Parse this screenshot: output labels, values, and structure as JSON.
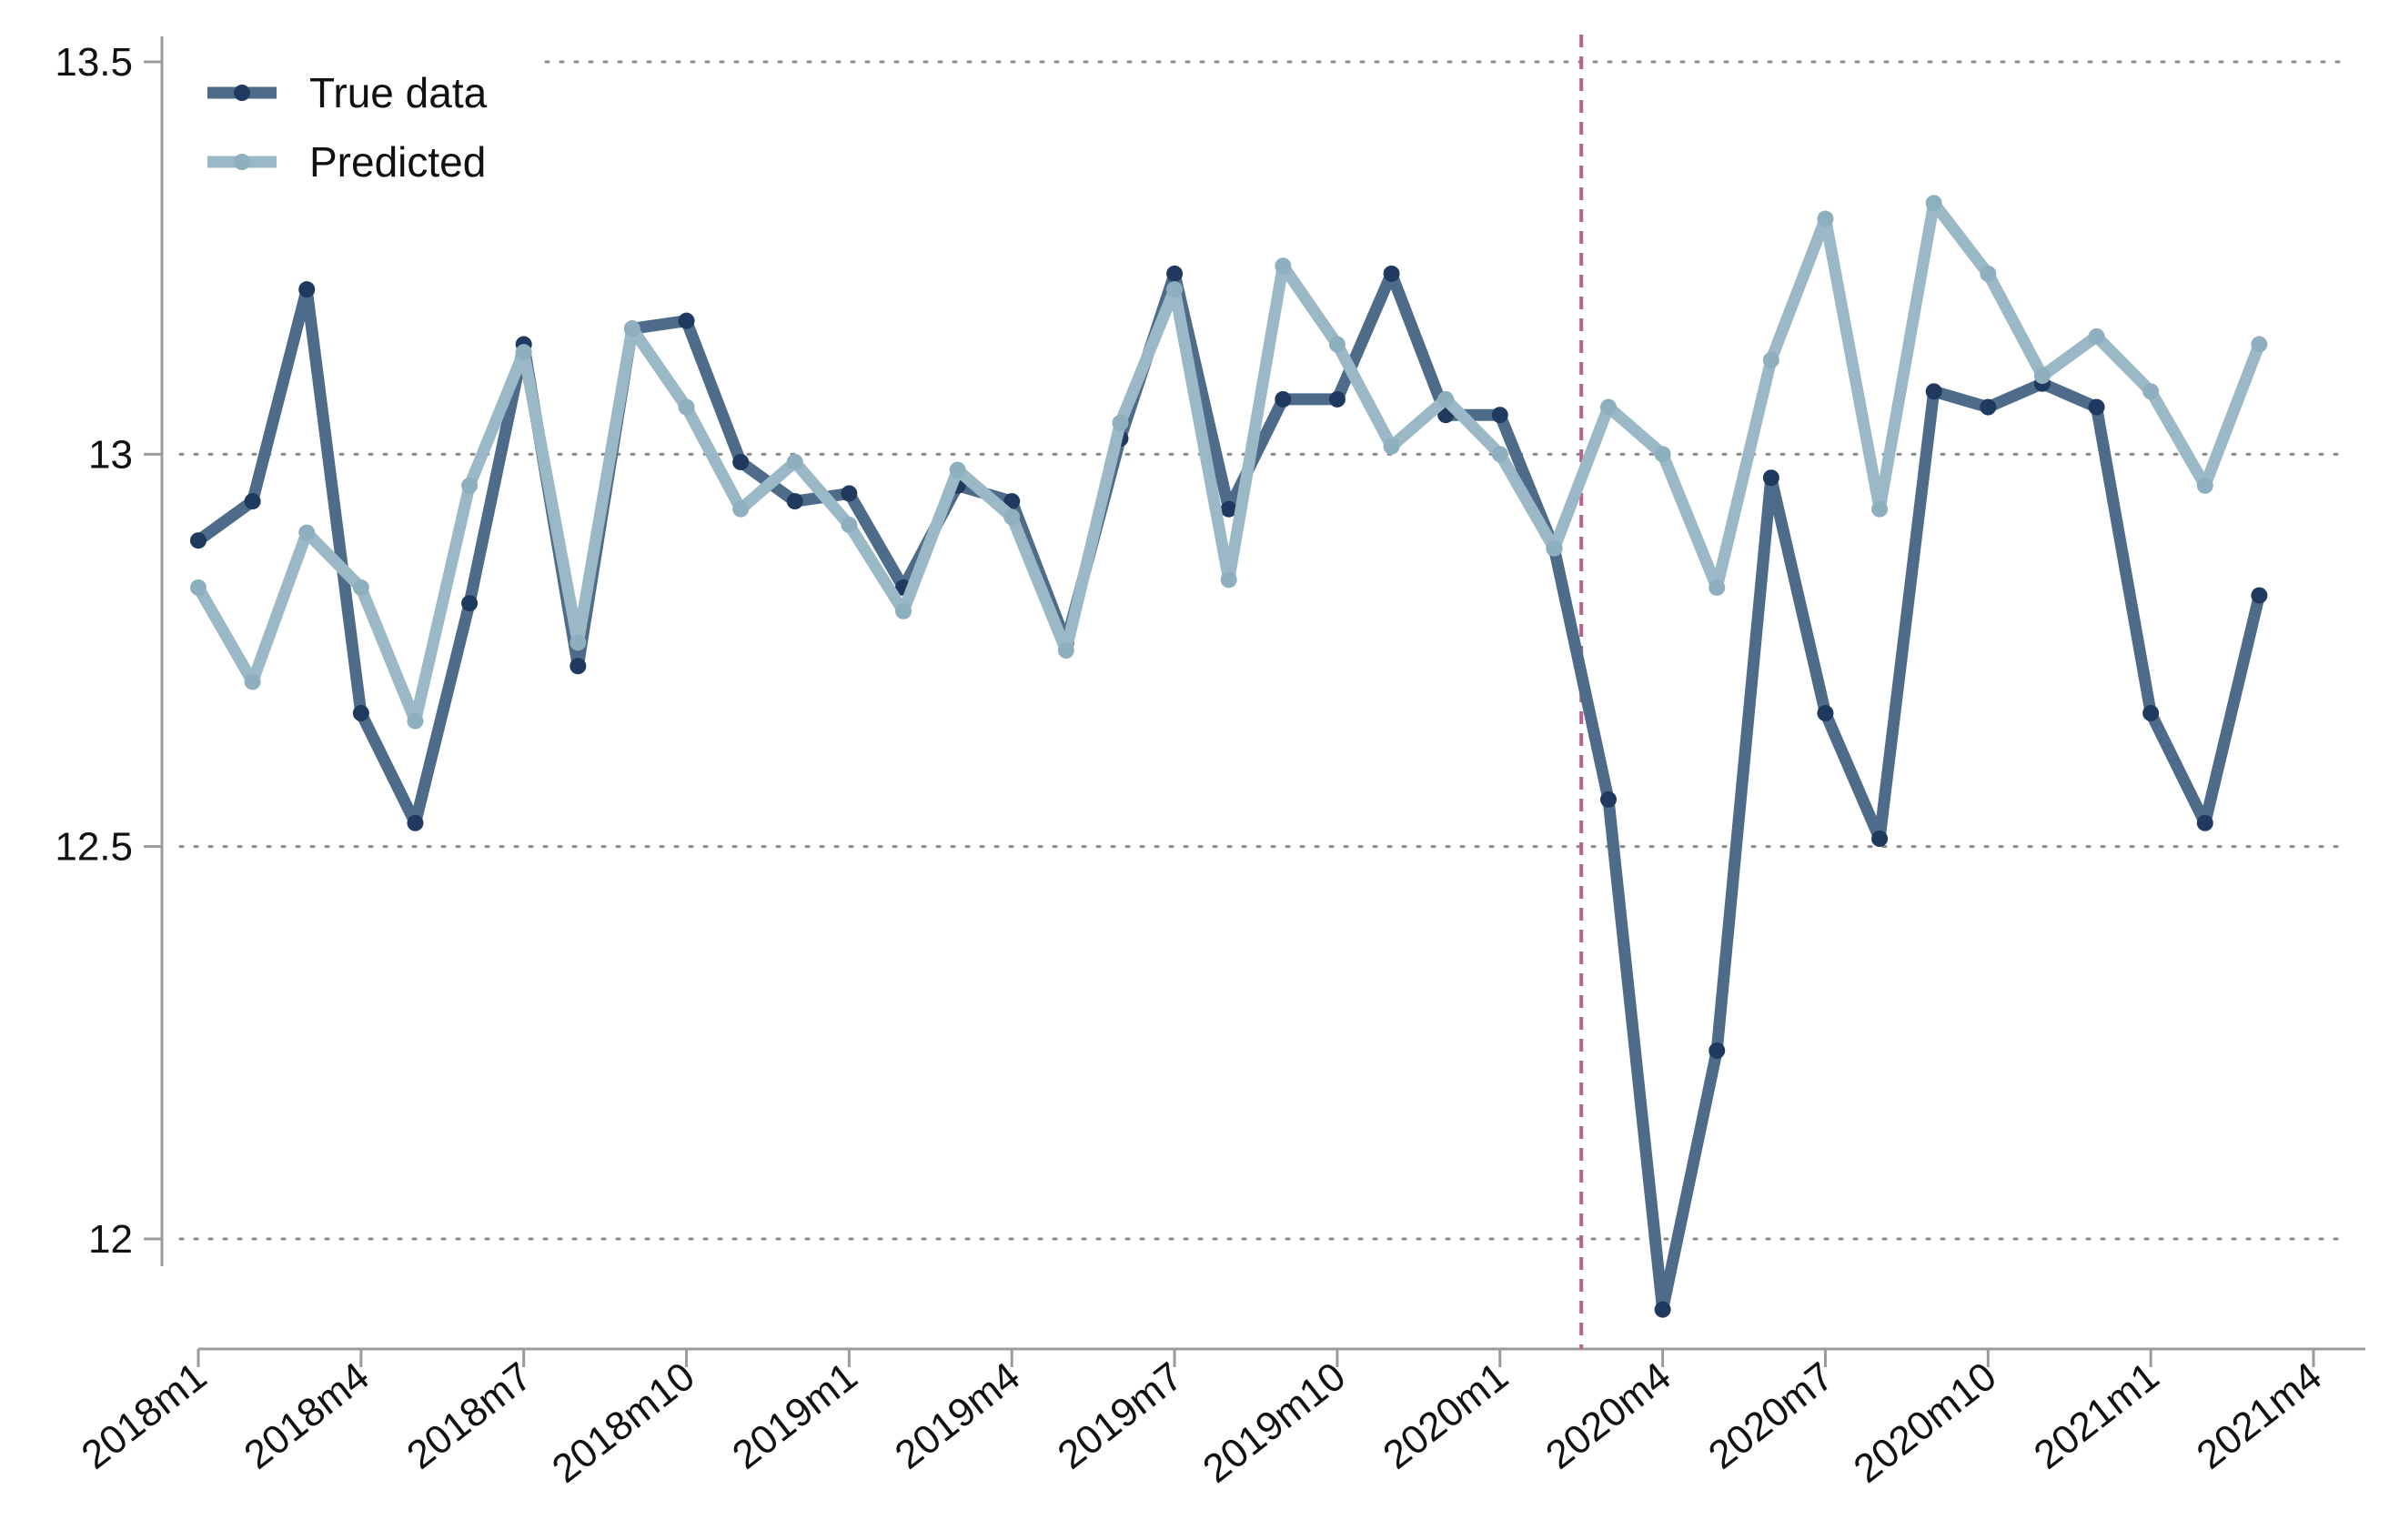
{
  "chart_data": {
    "type": "line",
    "title": "",
    "xlabel": "",
    "ylabel": "",
    "ylim": [
      11.86,
      13.5
    ],
    "yticks": [
      12,
      12.5,
      13,
      13.5
    ],
    "ytick_labels": [
      "12",
      "12.5",
      "13",
      "13.5"
    ],
    "grid": "horizontal dotted",
    "legend_position": "top-left",
    "x": [
      "2018m1",
      "2018m2",
      "2018m3",
      "2018m4",
      "2018m5",
      "2018m6",
      "2018m7",
      "2018m8",
      "2018m9",
      "2018m10",
      "2018m11",
      "2018m12",
      "2019m1",
      "2019m2",
      "2019m3",
      "2019m4",
      "2019m5",
      "2019m6",
      "2019m7",
      "2019m8",
      "2019m9",
      "2019m10",
      "2019m11",
      "2019m12",
      "2020m1",
      "2020m2",
      "2020m3",
      "2020m4",
      "2020m5",
      "2020m6",
      "2020m7",
      "2020m8",
      "2020m9",
      "2020m10",
      "2020m11",
      "2020m12",
      "2021m1",
      "2021m2",
      "2021m3"
    ],
    "xtick_labels": [
      "2018m1",
      "2018m4",
      "2018m7",
      "2018m10",
      "2019m1",
      "2019m4",
      "2019m7",
      "2019m10",
      "2020m1",
      "2020m4",
      "2020m7",
      "2020m10",
      "2021m1",
      "2021m4"
    ],
    "vline_x": "2020m2.5",
    "series": [
      {
        "name": "True data",
        "color": "#4e6b8a",
        "marker_color": "#1f3a5e",
        "values": [
          12.89,
          12.94,
          13.21,
          12.67,
          12.53,
          12.81,
          13.14,
          12.73,
          13.16,
          13.17,
          12.99,
          12.94,
          12.95,
          12.83,
          12.96,
          12.94,
          12.76,
          13.02,
          13.23,
          12.93,
          13.07,
          13.07,
          13.23,
          13.05,
          13.05,
          12.88,
          12.56,
          11.91,
          12.24,
          12.97,
          12.67,
          12.51,
          13.08,
          13.06,
          13.09,
          13.06,
          12.67,
          12.53,
          12.82
        ]
      },
      {
        "name": "Predicted",
        "color": "#9bb8c6",
        "marker_color": "#8eafbe",
        "values": [
          12.83,
          12.71,
          12.9,
          12.83,
          12.66,
          12.96,
          13.13,
          12.76,
          13.16,
          13.06,
          12.93,
          12.99,
          12.91,
          12.8,
          12.98,
          12.92,
          12.75,
          13.04,
          13.21,
          12.84,
          13.24,
          13.14,
          13.01,
          13.07,
          13.0,
          12.88,
          13.06,
          13.0,
          12.83,
          13.12,
          13.3,
          12.93,
          13.32,
          13.23,
          13.1,
          13.15,
          13.08,
          12.96,
          13.14
        ]
      }
    ],
    "vline_color": "#b5648c"
  }
}
